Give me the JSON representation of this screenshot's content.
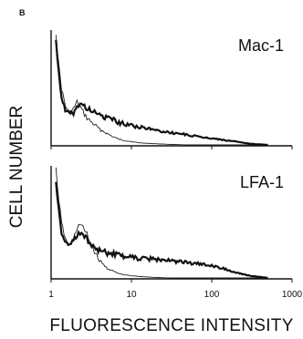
{
  "chart_data": {
    "type": "line",
    "panel_letter": "B",
    "ylabel": "CELL NUMBER",
    "xlabel": "FLUORESCENCE INTENSITY",
    "x_scale": "log",
    "xlim": [
      1,
      1000
    ],
    "x_tick_values": [
      1,
      10,
      100,
      1000
    ],
    "x_tick_labels": [
      "1",
      "10",
      "100",
      "1000"
    ],
    "ylim": [
      0,
      100
    ],
    "panels": [
      {
        "marker": "Mac-1",
        "series": [
          {
            "style": "thin",
            "x": [
              1.15,
              1.25,
              1.35,
              1.5,
              1.7,
              1.9,
              2.1,
              2.3,
              2.5,
              2.8,
              3.2,
              3.6,
              4.0,
              4.5,
              5.0,
              6.0,
              7.0,
              8.0,
              10,
              12,
              15,
              20,
              30,
              50,
              100,
              200,
              500
            ],
            "values": [
              100,
              70,
              50,
              35,
              28,
              32,
              38,
              34,
              29,
              24,
              20,
              17,
              14,
              12,
              10,
              7,
              5,
              4,
              3,
              2,
              1.5,
              1,
              0.5,
              0,
              0,
              0,
              0
            ]
          },
          {
            "style": "thick",
            "x": [
              1.15,
              1.25,
              1.35,
              1.5,
              1.7,
              1.9,
              2.1,
              2.3,
              2.5,
              2.8,
              3.2,
              3.6,
              4.0,
              4.5,
              5.0,
              6.0,
              7.0,
              8.0,
              10,
              12,
              15,
              20,
              25,
              30,
              40,
              50,
              70,
              100,
              150,
              200,
              300,
              500
            ],
            "values": [
              92,
              65,
              42,
              30,
              27,
              29,
              33,
              37,
              35,
              33,
              30,
              28,
              27,
              25,
              24,
              22,
              20,
              19,
              18,
              16,
              15,
              13,
              12,
              11,
              10,
              9,
              7,
              6,
              4,
              3,
              1,
              0
            ]
          }
        ]
      },
      {
        "marker": "LFA-1",
        "series": [
          {
            "style": "thin",
            "x": [
              1.15,
              1.25,
              1.35,
              1.5,
              1.7,
              1.9,
              2.1,
              2.3,
              2.5,
              2.8,
              3.2,
              3.6,
              4.0,
              4.5,
              5.0,
              6.0,
              7.0,
              8.0,
              10,
              12,
              15,
              20,
              30,
              50,
              100,
              500
            ],
            "values": [
              100,
              72,
              50,
              36,
              30,
              36,
              46,
              50,
              46,
              40,
              30,
              22,
              16,
              12,
              9,
              6,
              4,
              3,
              2,
              1.5,
              1,
              0.5,
              0,
              0,
              0,
              0
            ]
          },
          {
            "style": "thick",
            "x": [
              1.15,
              1.25,
              1.35,
              1.5,
              1.7,
              1.9,
              2.1,
              2.3,
              2.5,
              2.8,
              3.2,
              3.6,
              4.0,
              4.5,
              5.0,
              6.0,
              7.0,
              8.0,
              10,
              12,
              15,
              20,
              25,
              30,
              40,
              50,
              70,
              100,
              150,
              200,
              300,
              500
            ],
            "values": [
              88,
              62,
              42,
              32,
              30,
              34,
              40,
              42,
              40,
              36,
              30,
              27,
              25,
              24,
              23,
              22,
              21,
              20,
              19,
              18,
              18,
              17,
              17,
              16,
              15,
              14,
              13,
              11,
              8,
              5,
              2,
              0
            ]
          }
        ]
      }
    ]
  }
}
